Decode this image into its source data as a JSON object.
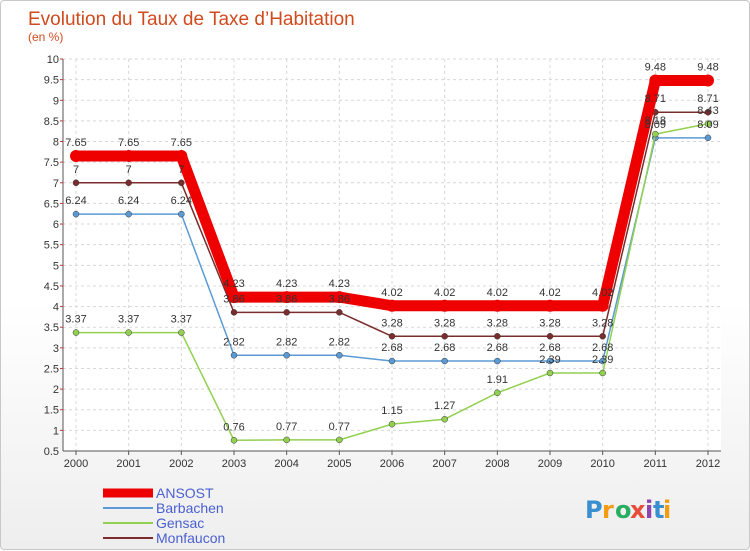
{
  "chart_data": {
    "type": "line",
    "title": "Evolution du Taux de Taxe d’Habitation",
    "subtitle": "(en %)",
    "x": [
      "2000",
      "2001",
      "2002",
      "2003",
      "2004",
      "2005",
      "2006",
      "2007",
      "2008",
      "2009",
      "2010",
      "2011",
      "2012"
    ],
    "ylim": [
      0.5,
      10
    ],
    "y_ticks": [
      "0.5",
      "1",
      "1.5",
      "2",
      "2.5",
      "3",
      "3.5",
      "4",
      "4.5",
      "5",
      "5.5",
      "6",
      "6.5",
      "7",
      "7.5",
      "8",
      "8.5",
      "9",
      "9.5",
      "10"
    ],
    "grid": true,
    "legend_position": "bottom-left",
    "series": [
      {
        "name": "ANSOST",
        "color": "#ee0000",
        "values": [
          7.65,
          7.65,
          7.65,
          4.23,
          4.23,
          4.23,
          4.02,
          4.02,
          4.02,
          4.02,
          4.02,
          9.48,
          9.48
        ],
        "labels": [
          "7.65",
          "7.65",
          "7.65",
          "4.23",
          "4.23",
          "4.23",
          "4.02",
          "4.02",
          "4.02",
          "4.02",
          "4.02",
          "9.48",
          "9.48"
        ]
      },
      {
        "name": "Barbachen",
        "color": "#5b9bd5",
        "values": [
          6.24,
          6.24,
          6.24,
          2.82,
          2.82,
          2.82,
          2.68,
          2.68,
          2.68,
          2.68,
          2.68,
          8.09,
          8.09
        ],
        "labels": [
          "6.24",
          "6.24",
          "6.24",
          "2.82",
          "2.82",
          "2.82",
          "2.68",
          "2.68",
          "2.68",
          "2.68",
          "2.68",
          "8.09",
          "8.09"
        ]
      },
      {
        "name": "Gensac",
        "color": "#92d050",
        "values": [
          3.37,
          3.37,
          3.37,
          0.76,
          0.77,
          0.77,
          1.15,
          1.27,
          1.91,
          2.39,
          2.39,
          8.18,
          8.43
        ],
        "labels": [
          "3.37",
          "3.37",
          "3.37",
          "0.76",
          "0.77",
          "0.77",
          "1.15",
          "1.27",
          "1.91",
          "2.39",
          "2.39",
          "8.18",
          "8.43"
        ]
      },
      {
        "name": "Monfaucon",
        "color": "#7b2c2c",
        "values": [
          7,
          7,
          7,
          3.86,
          3.86,
          3.86,
          3.28,
          3.28,
          3.28,
          3.28,
          3.28,
          8.71,
          8.71
        ],
        "labels": [
          "7",
          "7",
          "7",
          "3.86",
          "3.86",
          "3.86",
          "3.28",
          "3.28",
          "3.28",
          "3.28",
          "3.28",
          "8.71",
          "8.71"
        ]
      }
    ]
  },
  "legend": {
    "items": [
      {
        "label": "ANSOST",
        "color": "#ee0000"
      },
      {
        "label": "Barbachen",
        "color": "#5b9bd5"
      },
      {
        "label": "Gensac",
        "color": "#92d050"
      },
      {
        "label": "Monfaucon",
        "color": "#7b2c2c"
      }
    ]
  },
  "logo": {
    "text": "Proxiti",
    "letters": [
      "P",
      "r",
      "o",
      "x",
      "i",
      "t",
      "i"
    ],
    "colors": [
      "#3a8fd0",
      "#f39c12",
      "#27ae60",
      "#e74c3c",
      "#8e44ad",
      "#3a8fd0",
      "#f39c12"
    ]
  }
}
